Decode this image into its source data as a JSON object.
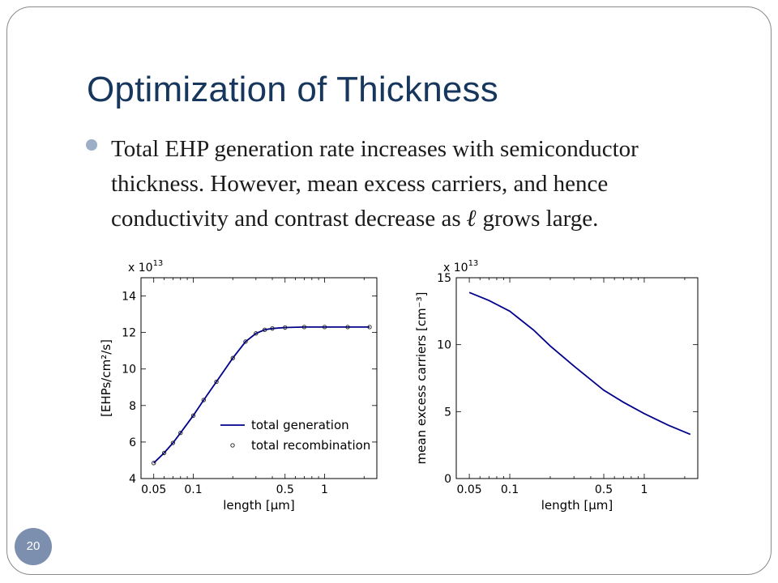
{
  "slide": {
    "title": "Optimization of Thickness",
    "bullet_part1": "Total EHP generation rate increases with semiconductor thickness. However, mean excess carriers, and hence conductivity and contrast decrease as ",
    "bullet_symbol": "ℓ",
    "bullet_part2": " grows large.",
    "page_number": "20"
  },
  "colors": {
    "title": "#17365d",
    "badge": "#7d8fae",
    "line": "#00008b",
    "marker": "#1a1a1a"
  },
  "chart_data": [
    {
      "type": "line",
      "xscale": "log",
      "xlim": [
        0.04,
        2.5
      ],
      "ylim": [
        4,
        15
      ],
      "xticks": [
        0.05,
        0.1,
        0.5,
        1
      ],
      "xtick_labels": [
        "0.05",
        "0.1",
        "0.5",
        "1"
      ],
      "yticks": [
        4,
        6,
        8,
        10,
        12,
        14
      ],
      "ytick_labels": [
        "4",
        "6",
        "8",
        "10",
        "12",
        "14"
      ],
      "multiplier": "x 10",
      "multiplier_exp": "13",
      "xlabel": "length [μm]",
      "ylabel": "[EHPs/cm²/s]",
      "legend_position": "bottom-right",
      "series": [
        {
          "name": "total generation",
          "style": "line",
          "x": [
            0.05,
            0.06,
            0.07,
            0.08,
            0.1,
            0.12,
            0.15,
            0.2,
            0.25,
            0.3,
            0.35,
            0.4,
            0.5,
            0.7,
            1.0,
            1.5,
            2.2
          ],
          "y": [
            4.85,
            5.4,
            5.95,
            6.5,
            7.45,
            8.3,
            9.3,
            10.6,
            11.5,
            11.95,
            12.15,
            12.22,
            12.27,
            12.3,
            12.3,
            12.3,
            12.3
          ]
        },
        {
          "name": "total recombination",
          "style": "markers",
          "x": [
            0.05,
            0.06,
            0.07,
            0.08,
            0.1,
            0.12,
            0.15,
            0.2,
            0.25,
            0.3,
            0.35,
            0.4,
            0.5,
            0.7,
            1.0,
            1.5,
            2.2
          ],
          "y": [
            4.85,
            5.4,
            5.95,
            6.5,
            7.45,
            8.3,
            9.3,
            10.6,
            11.5,
            11.95,
            12.15,
            12.22,
            12.27,
            12.3,
            12.3,
            12.3,
            12.3
          ]
        }
      ]
    },
    {
      "type": "line",
      "xscale": "log",
      "xlim": [
        0.04,
        2.5
      ],
      "ylim": [
        0,
        15
      ],
      "xticks": [
        0.05,
        0.1,
        0.5,
        1
      ],
      "xtick_labels": [
        "0.05",
        "0.1",
        "0.5",
        "1"
      ],
      "yticks": [
        0,
        5,
        10,
        15
      ],
      "ytick_labels": [
        "0",
        "5",
        "10",
        "15"
      ],
      "multiplier": "x 10",
      "multiplier_exp": "13",
      "xlabel": "length [μm]",
      "ylabel": "mean excess carriers [cm⁻³]",
      "series": [
        {
          "x": [
            0.05,
            0.07,
            0.1,
            0.15,
            0.2,
            0.3,
            0.5,
            0.7,
            1.0,
            1.5,
            2.2
          ],
          "y": [
            13.9,
            13.3,
            12.5,
            11.1,
            9.9,
            8.4,
            6.6,
            5.7,
            4.85,
            4.0,
            3.3
          ]
        }
      ]
    }
  ]
}
